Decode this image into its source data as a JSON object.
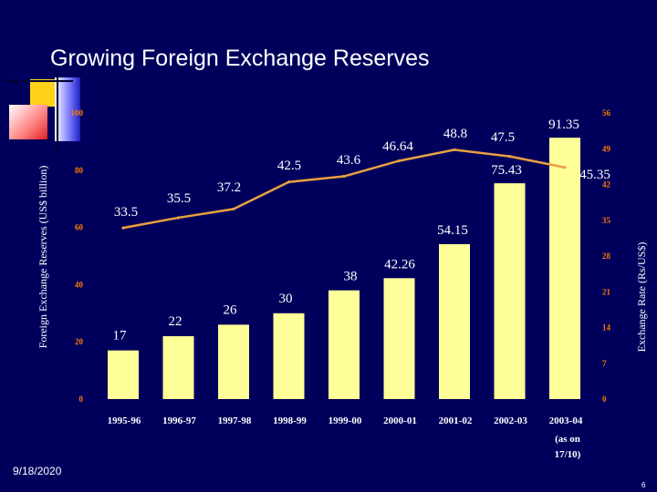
{
  "slide": {
    "title": "Growing Foreign Exchange Reserves",
    "date": "9/18/2020",
    "page_number": "6"
  },
  "colors": {
    "background": "#00005c",
    "bar_fill": "#ffff99",
    "line": "#e8a040",
    "label_text": "#ffffff",
    "axis_tick_text": "#ff7a00",
    "category_text": "#ffffff"
  },
  "chart_data": {
    "type": "bar",
    "categories": [
      "1995-96",
      "1996-97",
      "1997-98",
      "1998-99",
      "1999-00",
      "2000-01",
      "2001-02",
      "2002-03",
      "2003-04"
    ],
    "category_note": "(as on 17/10)",
    "series": [
      {
        "axis": "left",
        "type": "bar",
        "values": [
          17,
          22,
          26,
          30,
          38,
          42.26,
          54.15,
          75.43,
          91.35
        ],
        "labels": [
          "17",
          "22",
          "26",
          "30",
          "38",
          "42.26",
          "54.15",
          "75.43",
          "91.35"
        ]
      },
      {
        "axis": "right",
        "type": "line",
        "values": [
          33.5,
          35.5,
          37.2,
          42.5,
          43.6,
          46.64,
          48.8,
          47.5,
          45.35
        ],
        "labels": [
          "33.5",
          "35.5",
          "37.2",
          "42.5",
          "43.6",
          "46.64",
          "48.8",
          "47.5",
          "45.35"
        ]
      }
    ],
    "ylabel": "Foreign Exchange Reserves (US$ billion)",
    "y2label": "Exchange Rate (Rs/US$)",
    "ylim": [
      0,
      100
    ],
    "yticks": [
      "0",
      "20",
      "40",
      "60",
      "80",
      "100"
    ],
    "y2lim": [
      0,
      56
    ],
    "y2ticks": [
      "0",
      "7",
      "14",
      "21",
      "28",
      "35",
      "42",
      "49",
      "56"
    ],
    "grid": false,
    "legend": "none"
  }
}
